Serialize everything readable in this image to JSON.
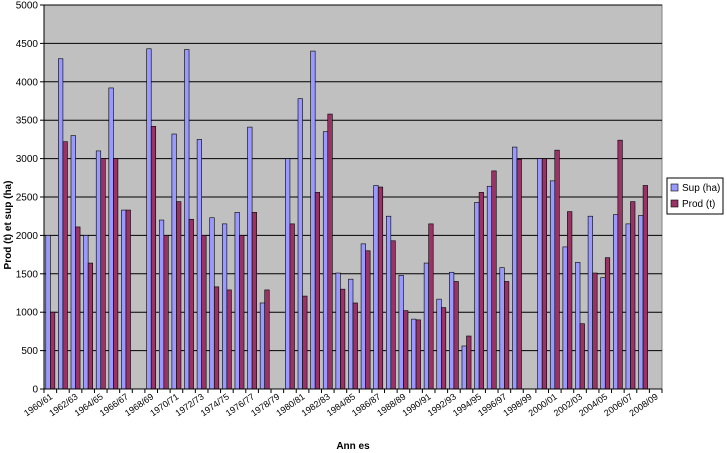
{
  "chart_data": {
    "type": "bar",
    "title": "",
    "xlabel": "Ann es",
    "ylabel": "Prod (t) et sup (ha)",
    "ylim": [
      0,
      5000
    ],
    "yticks": [
      0,
      500,
      1000,
      1500,
      2000,
      2500,
      3000,
      3500,
      4000,
      4500,
      5000
    ],
    "grid": true,
    "legend_position": "right",
    "categories": [
      "1960/61",
      "1961/62",
      "1962/63",
      "1963/64",
      "1964/65",
      "1965/66",
      "1966/67",
      "1967/68",
      "1968/69",
      "1969/70",
      "1970/71",
      "1971/72",
      "1972/73",
      "1973/74",
      "1974/75",
      "1975/76",
      "1976/77",
      "1977/78",
      "1978/79",
      "1979/80",
      "1980/81",
      "1981/82",
      "1982/83",
      "1983/84",
      "1984/85",
      "1985/86",
      "1986/87",
      "1987/88",
      "1988/89",
      "1989/90",
      "1990/91",
      "1991/92",
      "1992/93",
      "1993/94",
      "1994/95",
      "1995/96",
      "1996/97",
      "1997/98",
      "1998/99",
      "1999/00",
      "2000/01",
      "2001/02",
      "2002/03",
      "2003/04",
      "2004/05",
      "2005/06",
      "2006/07",
      "2007/08",
      "2008/09"
    ],
    "tick_labels": [
      "1960/61",
      "1962/63",
      "1964/65",
      "1966/67",
      "1968/69",
      "1970/71",
      "1972/73",
      "1974/75",
      "1976/77",
      "1978/79",
      "1980/81",
      "1982/83",
      "1984/85",
      "1986/87",
      "1988/89",
      "1990/91",
      "1992/93",
      "1994/95",
      "1996/97",
      "1998/99",
      "2000/01",
      "2002/03",
      "2004/05",
      "2006/07",
      "2008/09"
    ],
    "series": [
      {
        "name": "Sup (ha)",
        "color": "#9999ff",
        "values": [
          2000,
          4300,
          3300,
          2000,
          3100,
          3920,
          2330,
          null,
          4430,
          2200,
          3320,
          4420,
          3250,
          2230,
          2150,
          2300,
          3410,
          1120,
          null,
          3000,
          3780,
          4400,
          3350,
          1510,
          1430,
          1890,
          2650,
          2250,
          1480,
          910,
          1640,
          1170,
          1520,
          560,
          2430,
          2640,
          1580,
          3150,
          null,
          3000,
          2710,
          1850,
          1650,
          2250,
          1450,
          2270,
          2150,
          2260,
          null
        ]
      },
      {
        "name": "Prod (t)",
        "color": "#993366",
        "values": [
          1000,
          3220,
          2110,
          1640,
          3000,
          3000,
          2330,
          null,
          3420,
          2000,
          2440,
          2210,
          2000,
          1330,
          1290,
          2000,
          2300,
          1290,
          null,
          2150,
          1210,
          2560,
          3580,
          1300,
          1120,
          1800,
          2630,
          1930,
          1020,
          900,
          2150,
          1060,
          1400,
          690,
          2560,
          2840,
          1400,
          2990,
          null,
          3000,
          3110,
          2310,
          850,
          1510,
          1710,
          3240,
          2440,
          2650,
          null
        ]
      }
    ]
  }
}
